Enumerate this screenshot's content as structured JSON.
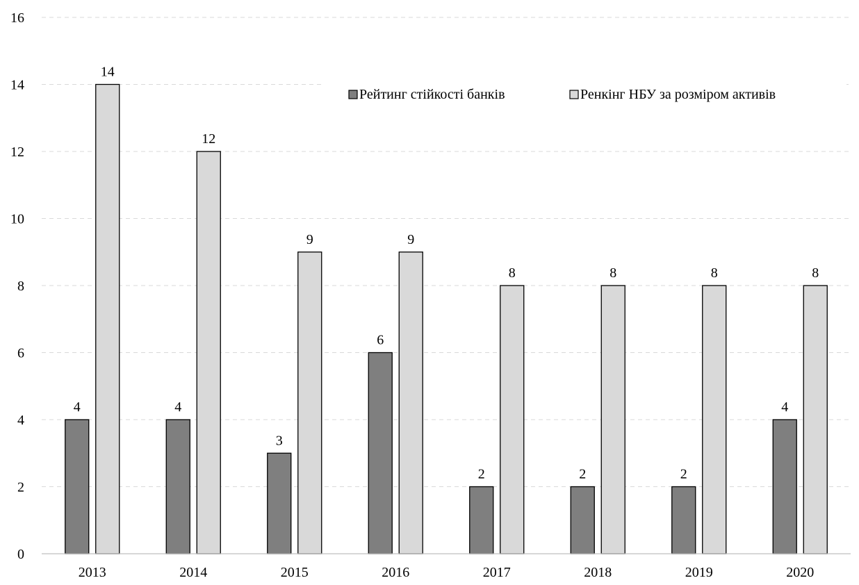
{
  "chart_data": {
    "type": "bar",
    "title": "",
    "xlabel": "",
    "ylabel": "",
    "categories": [
      "2013",
      "2014",
      "2015",
      "2016",
      "2017",
      "2018",
      "2019",
      "2020"
    ],
    "series": [
      {
        "name": "Рейтинг стійкості банків",
        "values": [
          4,
          4,
          3,
          6,
          2,
          2,
          2,
          4
        ],
        "color": "#7f7f7f"
      },
      {
        "name": "Ренкінг НБУ за розміром активів",
        "values": [
          14,
          12,
          9,
          9,
          8,
          8,
          8,
          8
        ],
        "color": "#d9d9d9"
      }
    ],
    "ylim": [
      0,
      16
    ],
    "yticks": [
      "0",
      "2",
      "4",
      "6",
      "8",
      "10",
      "12",
      "14",
      "16"
    ],
    "grid": true,
    "legend_position": "top-right",
    "bar_outline_color": "#000000",
    "grid_color": "#d9d9d9",
    "axis_color": "#bfbfbf"
  }
}
